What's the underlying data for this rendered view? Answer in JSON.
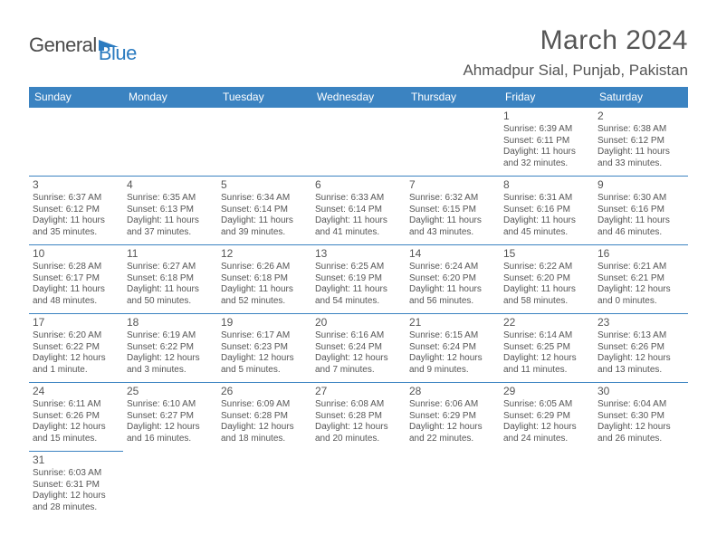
{
  "logo": {
    "text1": "General",
    "text2": "Blue"
  },
  "title": "March 2024",
  "location": "Ahmadpur Sial, Punjab, Pakistan",
  "colors": {
    "header_bg": "#3b83c1",
    "header_fg": "#ffffff",
    "text": "#555555",
    "logo_gray": "#4a4a4a",
    "logo_blue": "#2b7bc0",
    "border": "#3b83c1",
    "background": "#ffffff"
  },
  "day_headers": [
    "Sunday",
    "Monday",
    "Tuesday",
    "Wednesday",
    "Thursday",
    "Friday",
    "Saturday"
  ],
  "weeks": [
    [
      null,
      null,
      null,
      null,
      null,
      {
        "n": "1",
        "sr": "Sunrise: 6:39 AM",
        "ss": "Sunset: 6:11 PM",
        "d1": "Daylight: 11 hours",
        "d2": "and 32 minutes."
      },
      {
        "n": "2",
        "sr": "Sunrise: 6:38 AM",
        "ss": "Sunset: 6:12 PM",
        "d1": "Daylight: 11 hours",
        "d2": "and 33 minutes."
      }
    ],
    [
      {
        "n": "3",
        "sr": "Sunrise: 6:37 AM",
        "ss": "Sunset: 6:12 PM",
        "d1": "Daylight: 11 hours",
        "d2": "and 35 minutes."
      },
      {
        "n": "4",
        "sr": "Sunrise: 6:35 AM",
        "ss": "Sunset: 6:13 PM",
        "d1": "Daylight: 11 hours",
        "d2": "and 37 minutes."
      },
      {
        "n": "5",
        "sr": "Sunrise: 6:34 AM",
        "ss": "Sunset: 6:14 PM",
        "d1": "Daylight: 11 hours",
        "d2": "and 39 minutes."
      },
      {
        "n": "6",
        "sr": "Sunrise: 6:33 AM",
        "ss": "Sunset: 6:14 PM",
        "d1": "Daylight: 11 hours",
        "d2": "and 41 minutes."
      },
      {
        "n": "7",
        "sr": "Sunrise: 6:32 AM",
        "ss": "Sunset: 6:15 PM",
        "d1": "Daylight: 11 hours",
        "d2": "and 43 minutes."
      },
      {
        "n": "8",
        "sr": "Sunrise: 6:31 AM",
        "ss": "Sunset: 6:16 PM",
        "d1": "Daylight: 11 hours",
        "d2": "and 45 minutes."
      },
      {
        "n": "9",
        "sr": "Sunrise: 6:30 AM",
        "ss": "Sunset: 6:16 PM",
        "d1": "Daylight: 11 hours",
        "d2": "and 46 minutes."
      }
    ],
    [
      {
        "n": "10",
        "sr": "Sunrise: 6:28 AM",
        "ss": "Sunset: 6:17 PM",
        "d1": "Daylight: 11 hours",
        "d2": "and 48 minutes."
      },
      {
        "n": "11",
        "sr": "Sunrise: 6:27 AM",
        "ss": "Sunset: 6:18 PM",
        "d1": "Daylight: 11 hours",
        "d2": "and 50 minutes."
      },
      {
        "n": "12",
        "sr": "Sunrise: 6:26 AM",
        "ss": "Sunset: 6:18 PM",
        "d1": "Daylight: 11 hours",
        "d2": "and 52 minutes."
      },
      {
        "n": "13",
        "sr": "Sunrise: 6:25 AM",
        "ss": "Sunset: 6:19 PM",
        "d1": "Daylight: 11 hours",
        "d2": "and 54 minutes."
      },
      {
        "n": "14",
        "sr": "Sunrise: 6:24 AM",
        "ss": "Sunset: 6:20 PM",
        "d1": "Daylight: 11 hours",
        "d2": "and 56 minutes."
      },
      {
        "n": "15",
        "sr": "Sunrise: 6:22 AM",
        "ss": "Sunset: 6:20 PM",
        "d1": "Daylight: 11 hours",
        "d2": "and 58 minutes."
      },
      {
        "n": "16",
        "sr": "Sunrise: 6:21 AM",
        "ss": "Sunset: 6:21 PM",
        "d1": "Daylight: 12 hours",
        "d2": "and 0 minutes."
      }
    ],
    [
      {
        "n": "17",
        "sr": "Sunrise: 6:20 AM",
        "ss": "Sunset: 6:22 PM",
        "d1": "Daylight: 12 hours",
        "d2": "and 1 minute."
      },
      {
        "n": "18",
        "sr": "Sunrise: 6:19 AM",
        "ss": "Sunset: 6:22 PM",
        "d1": "Daylight: 12 hours",
        "d2": "and 3 minutes."
      },
      {
        "n": "19",
        "sr": "Sunrise: 6:17 AM",
        "ss": "Sunset: 6:23 PM",
        "d1": "Daylight: 12 hours",
        "d2": "and 5 minutes."
      },
      {
        "n": "20",
        "sr": "Sunrise: 6:16 AM",
        "ss": "Sunset: 6:24 PM",
        "d1": "Daylight: 12 hours",
        "d2": "and 7 minutes."
      },
      {
        "n": "21",
        "sr": "Sunrise: 6:15 AM",
        "ss": "Sunset: 6:24 PM",
        "d1": "Daylight: 12 hours",
        "d2": "and 9 minutes."
      },
      {
        "n": "22",
        "sr": "Sunrise: 6:14 AM",
        "ss": "Sunset: 6:25 PM",
        "d1": "Daylight: 12 hours",
        "d2": "and 11 minutes."
      },
      {
        "n": "23",
        "sr": "Sunrise: 6:13 AM",
        "ss": "Sunset: 6:26 PM",
        "d1": "Daylight: 12 hours",
        "d2": "and 13 minutes."
      }
    ],
    [
      {
        "n": "24",
        "sr": "Sunrise: 6:11 AM",
        "ss": "Sunset: 6:26 PM",
        "d1": "Daylight: 12 hours",
        "d2": "and 15 minutes."
      },
      {
        "n": "25",
        "sr": "Sunrise: 6:10 AM",
        "ss": "Sunset: 6:27 PM",
        "d1": "Daylight: 12 hours",
        "d2": "and 16 minutes."
      },
      {
        "n": "26",
        "sr": "Sunrise: 6:09 AM",
        "ss": "Sunset: 6:28 PM",
        "d1": "Daylight: 12 hours",
        "d2": "and 18 minutes."
      },
      {
        "n": "27",
        "sr": "Sunrise: 6:08 AM",
        "ss": "Sunset: 6:28 PM",
        "d1": "Daylight: 12 hours",
        "d2": "and 20 minutes."
      },
      {
        "n": "28",
        "sr": "Sunrise: 6:06 AM",
        "ss": "Sunset: 6:29 PM",
        "d1": "Daylight: 12 hours",
        "d2": "and 22 minutes."
      },
      {
        "n": "29",
        "sr": "Sunrise: 6:05 AM",
        "ss": "Sunset: 6:29 PM",
        "d1": "Daylight: 12 hours",
        "d2": "and 24 minutes."
      },
      {
        "n": "30",
        "sr": "Sunrise: 6:04 AM",
        "ss": "Sunset: 6:30 PM",
        "d1": "Daylight: 12 hours",
        "d2": "and 26 minutes."
      }
    ],
    [
      {
        "n": "31",
        "sr": "Sunrise: 6:03 AM",
        "ss": "Sunset: 6:31 PM",
        "d1": "Daylight: 12 hours",
        "d2": "and 28 minutes."
      },
      null,
      null,
      null,
      null,
      null,
      null
    ]
  ]
}
